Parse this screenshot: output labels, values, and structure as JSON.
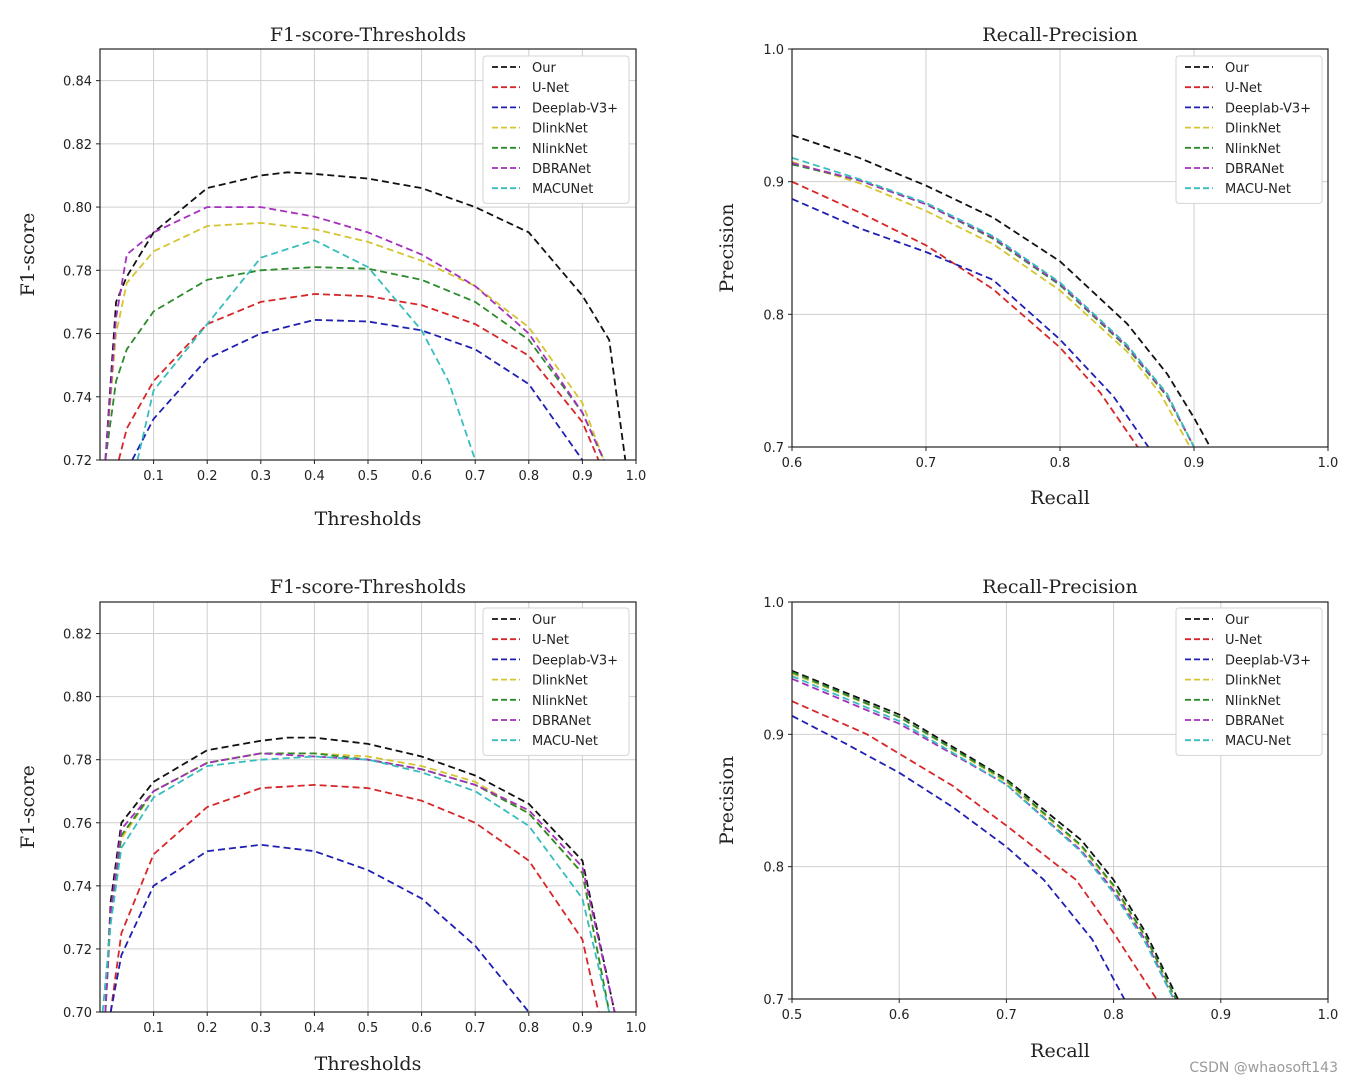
{
  "watermark": "CSDN @whaosoft143",
  "colors": {
    "Our": "#111111",
    "U-Net": "#d62728",
    "Deeplab-V3+": "#1f1fb4",
    "DlinkNet": "#d4c531",
    "NlinkNet": "#2b8a2b",
    "DBRANet": "#a52fbf",
    "MACUNet": "#38bdbd",
    "MACU-Net": "#38bdbd"
  },
  "chart_data": [
    {
      "type": "line",
      "title": "F1-score-Thresholds",
      "xlabel": "Thresholds",
      "ylabel": "F1-score",
      "xlim": [
        0.0,
        1.0
      ],
      "ylim": [
        0.72,
        0.85
      ],
      "xticks": [
        0.1,
        0.2,
        0.3,
        0.4,
        0.5,
        0.6,
        0.7,
        0.8,
        0.9,
        1.0
      ],
      "xtick_labels": [
        "0.1",
        "0.2",
        "0.3",
        "0.4",
        "0.5",
        "0.6",
        "0.7",
        "0.8",
        "0.9",
        "1.0"
      ],
      "yticks": [
        0.72,
        0.74,
        0.76,
        0.78,
        0.8,
        0.82,
        0.84
      ],
      "ytick_labels": [
        "0.72",
        "0.74",
        "0.76",
        "0.78",
        "0.80",
        "0.82",
        "0.84"
      ],
      "grid": true,
      "legend": "top-right",
      "series": [
        {
          "name": "Our",
          "x": [
            0.01,
            0.03,
            0.05,
            0.1,
            0.2,
            0.3,
            0.35,
            0.4,
            0.5,
            0.6,
            0.7,
            0.8,
            0.9,
            0.95,
            0.98
          ],
          "y": [
            0.72,
            0.77,
            0.778,
            0.792,
            0.806,
            0.81,
            0.811,
            0.8105,
            0.809,
            0.806,
            0.8,
            0.792,
            0.772,
            0.758,
            0.72
          ]
        },
        {
          "name": "U-Net",
          "x": [
            0.035,
            0.05,
            0.1,
            0.2,
            0.3,
            0.4,
            0.5,
            0.6,
            0.7,
            0.8,
            0.9,
            0.93
          ],
          "y": [
            0.72,
            0.73,
            0.745,
            0.763,
            0.77,
            0.7725,
            0.7718,
            0.769,
            0.763,
            0.753,
            0.732,
            0.72
          ]
        },
        {
          "name": "Deeplab-V3+",
          "x": [
            0.06,
            0.1,
            0.2,
            0.3,
            0.4,
            0.5,
            0.6,
            0.7,
            0.8,
            0.9
          ],
          "y": [
            0.72,
            0.733,
            0.752,
            0.76,
            0.7643,
            0.7638,
            0.761,
            0.755,
            0.744,
            0.72
          ]
        },
        {
          "name": "DlinkNet",
          "x": [
            0.01,
            0.03,
            0.05,
            0.1,
            0.2,
            0.3,
            0.4,
            0.5,
            0.6,
            0.7,
            0.8,
            0.9,
            0.94
          ],
          "y": [
            0.72,
            0.76,
            0.776,
            0.786,
            0.794,
            0.795,
            0.793,
            0.789,
            0.783,
            0.775,
            0.762,
            0.738,
            0.72
          ]
        },
        {
          "name": "NlinkNet",
          "x": [
            0.01,
            0.03,
            0.05,
            0.1,
            0.2,
            0.3,
            0.4,
            0.5,
            0.6,
            0.7,
            0.8,
            0.9,
            0.94
          ],
          "y": [
            0.72,
            0.745,
            0.755,
            0.767,
            0.777,
            0.78,
            0.781,
            0.7805,
            0.777,
            0.77,
            0.758,
            0.735,
            0.72
          ]
        },
        {
          "name": "DBRANet",
          "x": [
            0.01,
            0.03,
            0.05,
            0.1,
            0.2,
            0.3,
            0.4,
            0.5,
            0.6,
            0.7,
            0.8,
            0.9,
            0.94
          ],
          "y": [
            0.72,
            0.765,
            0.785,
            0.792,
            0.8,
            0.8,
            0.797,
            0.792,
            0.785,
            0.775,
            0.76,
            0.735,
            0.72
          ]
        },
        {
          "name": "MACUNet",
          "x": [
            0.07,
            0.1,
            0.2,
            0.3,
            0.4,
            0.5,
            0.6,
            0.65,
            0.7
          ],
          "y": [
            0.72,
            0.742,
            0.763,
            0.784,
            0.7895,
            0.781,
            0.761,
            0.745,
            0.72
          ]
        }
      ]
    },
    {
      "type": "line",
      "title": "Recall-Precision",
      "xlabel": "Recall",
      "ylabel": "Precision",
      "xlim": [
        0.6,
        1.0
      ],
      "ylim": [
        0.7,
        1.0
      ],
      "xticks": [
        0.6,
        0.7,
        0.8,
        0.9,
        1.0
      ],
      "xtick_labels": [
        "0.6",
        "0.7",
        "0.8",
        "0.9",
        "1.0"
      ],
      "yticks": [
        0.7,
        0.8,
        0.9,
        1.0
      ],
      "ytick_labels": [
        "0.7",
        "0.8",
        "0.9",
        "1.0"
      ],
      "grid": true,
      "legend": "top-right",
      "series": [
        {
          "name": "Our",
          "x": [
            0.6,
            0.65,
            0.7,
            0.75,
            0.8,
            0.85,
            0.88,
            0.9,
            0.912
          ],
          "y": [
            0.935,
            0.918,
            0.897,
            0.873,
            0.84,
            0.793,
            0.755,
            0.722,
            0.7
          ]
        },
        {
          "name": "U-Net",
          "x": [
            0.6,
            0.65,
            0.7,
            0.75,
            0.8,
            0.83,
            0.858
          ],
          "y": [
            0.9,
            0.877,
            0.852,
            0.819,
            0.775,
            0.741,
            0.7
          ]
        },
        {
          "name": "Deeplab-V3+",
          "x": [
            0.6,
            0.65,
            0.7,
            0.75,
            0.8,
            0.84,
            0.866
          ],
          "y": [
            0.887,
            0.865,
            0.847,
            0.826,
            0.781,
            0.738,
            0.7
          ]
        },
        {
          "name": "DlinkNet",
          "x": [
            0.6,
            0.65,
            0.7,
            0.75,
            0.8,
            0.85,
            0.875,
            0.897
          ],
          "y": [
            0.915,
            0.899,
            0.878,
            0.853,
            0.818,
            0.772,
            0.74,
            0.7
          ]
        },
        {
          "name": "NlinkNet",
          "x": [
            0.6,
            0.65,
            0.7,
            0.75,
            0.8,
            0.85,
            0.88,
            0.9
          ],
          "y": [
            0.913,
            0.901,
            0.883,
            0.857,
            0.822,
            0.775,
            0.738,
            0.7
          ]
        },
        {
          "name": "DBRANet",
          "x": [
            0.6,
            0.65,
            0.7,
            0.75,
            0.8,
            0.85,
            0.88,
            0.9
          ],
          "y": [
            0.914,
            0.901,
            0.883,
            0.858,
            0.823,
            0.776,
            0.739,
            0.7
          ]
        },
        {
          "name": "MACU-Net",
          "x": [
            0.6,
            0.65,
            0.7,
            0.75,
            0.8,
            0.85,
            0.88,
            0.9
          ],
          "y": [
            0.918,
            0.902,
            0.884,
            0.859,
            0.824,
            0.777,
            0.74,
            0.7
          ]
        }
      ]
    },
    {
      "type": "line",
      "title": "F1-score-Thresholds",
      "xlabel": "Thresholds",
      "ylabel": "F1-score",
      "xlim": [
        0.0,
        1.0
      ],
      "ylim": [
        0.7,
        0.83
      ],
      "xticks": [
        0.1,
        0.2,
        0.3,
        0.4,
        0.5,
        0.6,
        0.7,
        0.8,
        0.9,
        1.0
      ],
      "xtick_labels": [
        "0.1",
        "0.2",
        "0.3",
        "0.4",
        "0.5",
        "0.6",
        "0.7",
        "0.8",
        "0.9",
        "1.0"
      ],
      "yticks": [
        0.7,
        0.72,
        0.74,
        0.76,
        0.78,
        0.8,
        0.82
      ],
      "ytick_labels": [
        "0.70",
        "0.72",
        "0.74",
        "0.76",
        "0.78",
        "0.80",
        "0.82"
      ],
      "grid": true,
      "legend": "top-right",
      "series": [
        {
          "name": "Our",
          "x": [
            0.01,
            0.02,
            0.04,
            0.1,
            0.2,
            0.3,
            0.35,
            0.4,
            0.5,
            0.6,
            0.7,
            0.8,
            0.9,
            0.96
          ],
          "y": [
            0.7,
            0.735,
            0.76,
            0.773,
            0.783,
            0.786,
            0.787,
            0.787,
            0.785,
            0.781,
            0.775,
            0.766,
            0.748,
            0.7
          ]
        },
        {
          "name": "U-Net",
          "x": [
            0.02,
            0.04,
            0.1,
            0.2,
            0.3,
            0.4,
            0.5,
            0.6,
            0.7,
            0.8,
            0.9,
            0.93
          ],
          "y": [
            0.7,
            0.725,
            0.75,
            0.765,
            0.771,
            0.772,
            0.771,
            0.767,
            0.76,
            0.748,
            0.723,
            0.7
          ]
        },
        {
          "name": "Deeplab-V3+",
          "x": [
            0.02,
            0.04,
            0.1,
            0.2,
            0.3,
            0.4,
            0.5,
            0.6,
            0.7,
            0.8
          ],
          "y": [
            0.7,
            0.718,
            0.74,
            0.751,
            0.753,
            0.751,
            0.745,
            0.736,
            0.721,
            0.7
          ]
        },
        {
          "name": "DlinkNet",
          "x": [
            0.01,
            0.02,
            0.04,
            0.1,
            0.2,
            0.3,
            0.4,
            0.5,
            0.6,
            0.7,
            0.8,
            0.9,
            0.95
          ],
          "y": [
            0.7,
            0.73,
            0.755,
            0.77,
            0.779,
            0.782,
            0.782,
            0.781,
            0.778,
            0.773,
            0.763,
            0.744,
            0.7
          ]
        },
        {
          "name": "NlinkNet",
          "x": [
            0.01,
            0.02,
            0.04,
            0.1,
            0.2,
            0.3,
            0.4,
            0.5,
            0.6,
            0.7,
            0.8,
            0.9,
            0.95
          ],
          "y": [
            0.7,
            0.731,
            0.756,
            0.77,
            0.779,
            0.782,
            0.782,
            0.78,
            0.777,
            0.772,
            0.763,
            0.744,
            0.7
          ]
        },
        {
          "name": "DBRANet",
          "x": [
            0.01,
            0.02,
            0.04,
            0.1,
            0.2,
            0.3,
            0.4,
            0.5,
            0.6,
            0.7,
            0.8,
            0.9,
            0.96
          ],
          "y": [
            0.7,
            0.732,
            0.758,
            0.77,
            0.779,
            0.782,
            0.781,
            0.78,
            0.777,
            0.772,
            0.764,
            0.746,
            0.7
          ]
        },
        {
          "name": "MACU-Net",
          "x": [
            0.005,
            0.02,
            0.04,
            0.1,
            0.2,
            0.3,
            0.4,
            0.5,
            0.6,
            0.7,
            0.8,
            0.9,
            0.95
          ],
          "y": [
            0.7,
            0.728,
            0.752,
            0.768,
            0.778,
            0.78,
            0.781,
            0.78,
            0.776,
            0.77,
            0.759,
            0.736,
            0.7
          ]
        }
      ]
    },
    {
      "type": "line",
      "title": "Recall-Precision",
      "xlabel": "Recall",
      "ylabel": "Precision",
      "xlim": [
        0.5,
        1.0
      ],
      "ylim": [
        0.7,
        1.0
      ],
      "xticks": [
        0.5,
        0.6,
        0.7,
        0.8,
        0.9,
        1.0
      ],
      "xtick_labels": [
        "0.5",
        "0.6",
        "0.7",
        "0.8",
        "0.9",
        "1.0"
      ],
      "yticks": [
        0.7,
        0.8,
        0.9,
        1.0
      ],
      "ytick_labels": [
        "0.7",
        "0.8",
        "0.9",
        "1.0"
      ],
      "grid": true,
      "legend": "top-right",
      "series": [
        {
          "name": "Our",
          "x": [
            0.5,
            0.6,
            0.7,
            0.77,
            0.8,
            0.83,
            0.86
          ],
          "y": [
            0.948,
            0.915,
            0.866,
            0.82,
            0.79,
            0.75,
            0.7
          ]
        },
        {
          "name": "U-Net",
          "x": [
            0.5,
            0.57,
            0.65,
            0.7,
            0.765,
            0.8,
            0.84
          ],
          "y": [
            0.925,
            0.9,
            0.861,
            0.831,
            0.79,
            0.75,
            0.7
          ]
        },
        {
          "name": "Deeplab-V3+",
          "x": [
            0.5,
            0.55,
            0.6,
            0.65,
            0.7,
            0.735,
            0.78,
            0.81
          ],
          "y": [
            0.914,
            0.893,
            0.871,
            0.845,
            0.815,
            0.79,
            0.745,
            0.7
          ]
        },
        {
          "name": "DlinkNet",
          "x": [
            0.5,
            0.6,
            0.7,
            0.77,
            0.8,
            0.83,
            0.858
          ],
          "y": [
            0.946,
            0.913,
            0.864,
            0.815,
            0.785,
            0.746,
            0.7
          ]
        },
        {
          "name": "NlinkNet",
          "x": [
            0.5,
            0.6,
            0.7,
            0.77,
            0.8,
            0.83,
            0.858
          ],
          "y": [
            0.947,
            0.913,
            0.865,
            0.816,
            0.786,
            0.747,
            0.7
          ]
        },
        {
          "name": "DBRANet",
          "x": [
            0.5,
            0.6,
            0.7,
            0.77,
            0.8,
            0.83,
            0.856
          ],
          "y": [
            0.942,
            0.908,
            0.862,
            0.812,
            0.782,
            0.744,
            0.7
          ]
        },
        {
          "name": "MACU-Net",
          "x": [
            0.5,
            0.6,
            0.7,
            0.77,
            0.8,
            0.83,
            0.856
          ],
          "y": [
            0.944,
            0.91,
            0.862,
            0.811,
            0.78,
            0.742,
            0.7
          ]
        }
      ]
    }
  ]
}
